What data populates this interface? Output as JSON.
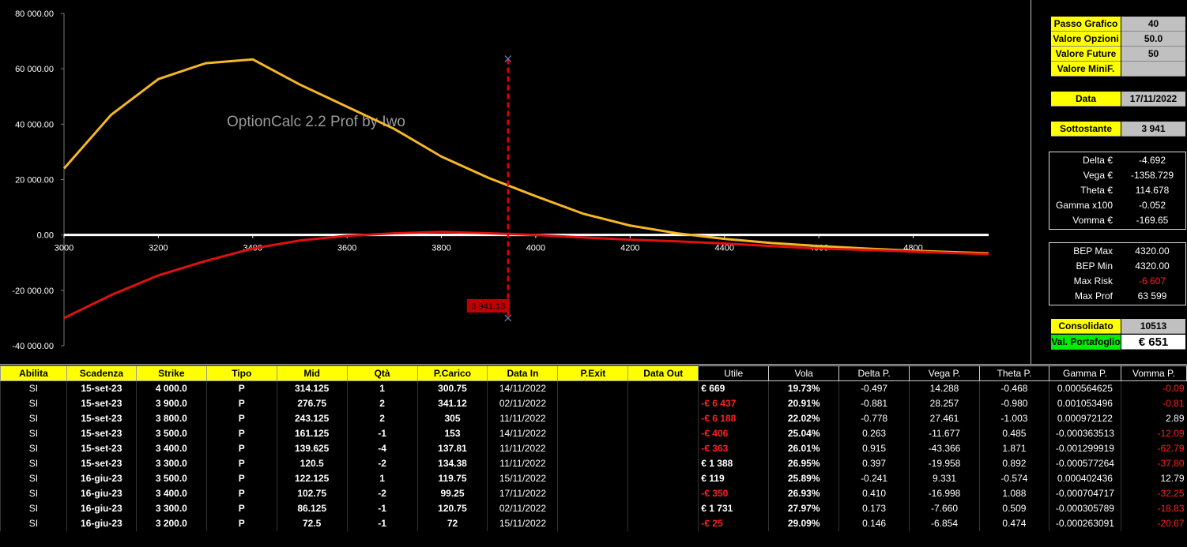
{
  "chart_data": {
    "type": "line",
    "annotation": "OptionCalc 2.2 Prof  by Iwo",
    "x": [
      3000,
      3100,
      3200,
      3300,
      3400,
      3500,
      3600,
      3700,
      3800,
      3900,
      4000,
      4100,
      4200,
      4300,
      4400,
      4500,
      4600,
      4700,
      4800,
      4900,
      4960
    ],
    "series": [
      {
        "color": "#f5b627",
        "values": [
          24000,
          43400,
          56300,
          62000,
          63400,
          54300,
          46300,
          38300,
          28300,
          20600,
          14000,
          7700,
          3400,
          600,
          -1400,
          -2900,
          -4000,
          -4900,
          -5700,
          -6300,
          -6600
        ]
      },
      {
        "color": "#e01010",
        "values": [
          -30000,
          -21700,
          -14600,
          -9400,
          -4900,
          -2000,
          -300,
          600,
          1100,
          600,
          0,
          -900,
          -1700,
          -2300,
          -3100,
          -4000,
          -4900,
          -5400,
          -6000,
          -6600,
          -6900
        ]
      }
    ],
    "xlim": [
      3000,
      4960
    ],
    "xticks": [
      3000,
      3200,
      3400,
      3600,
      3800,
      4000,
      4200,
      4400,
      4600,
      4800
    ],
    "ylim": [
      -40000,
      80000
    ],
    "yticks": [
      {
        "value": -40000,
        "label": "-40 000.00"
      },
      {
        "value": -20000,
        "label": "-20 000.00"
      },
      {
        "value": 0,
        "label": "0.00"
      },
      {
        "value": 20000,
        "label": "20 000.00"
      },
      {
        "value": 40000,
        "label": "40 000.00"
      },
      {
        "value": 60000,
        "label": "60 000.00"
      },
      {
        "value": 80000,
        "label": "80 000.00"
      }
    ],
    "marker": {
      "x": 3941.13,
      "label": "3 941.13",
      "y": [
        -30000,
        63599
      ],
      "color": "#e00000"
    }
  },
  "params": [
    {
      "label": "Passo Grafico",
      "value": "40"
    },
    {
      "label": "Valore Opzioni",
      "value": "50.0"
    },
    {
      "label": "Valore Future",
      "value": "50"
    },
    {
      "label": "Valore MiniF."
    }
  ],
  "date": {
    "label": "Data",
    "value": "17/11/2022"
  },
  "underlying": {
    "label": "Sottostante",
    "value": "3 941"
  },
  "greeks": [
    {
      "label": "Delta €",
      "value": "-4.692"
    },
    {
      "label": "Vega €",
      "value": "-1358.729"
    },
    {
      "label": "Theta €",
      "value": "114.678"
    },
    {
      "label": "Gamma x100",
      "value": "-0.052"
    },
    {
      "label": "Vomma €",
      "value": "-169.65"
    }
  ],
  "bep": [
    {
      "label": "BEP Max",
      "value": "4320.00"
    },
    {
      "label": "BEP Min",
      "value": "4320.00"
    },
    {
      "label": "Max Risk",
      "value": "-6 607"
    },
    {
      "label": "Max Prof",
      "value": "63 599"
    }
  ],
  "consolidated": {
    "label": "Consolidato",
    "value": "10513"
  },
  "portfolio": {
    "label": "Val. Portafoglio",
    "value": "€ 651"
  },
  "table": {
    "headers": [
      "Abilita",
      "Scadenza",
      "Strike",
      "Tipo",
      "Mid",
      "Qtà",
      "P.Carico",
      "Data In",
      "P.Exit",
      "Data Out",
      "Utile",
      "Vola",
      "Delta P.",
      "Vega P.",
      "Theta P.",
      "Gamma P.",
      "Vomma P."
    ],
    "rows": [
      [
        "SI",
        "15-set-23",
        "4 000.0",
        "P",
        "314.125",
        "1",
        "300.75",
        "14/11/2022",
        null,
        null,
        "€ 669",
        "19.73%",
        "-0.497",
        "14.288",
        "-0.468",
        "0.000564625",
        "-0.09"
      ],
      [
        "SI",
        "15-set-23",
        "3 900.0",
        "P",
        "276.75",
        "2",
        "341.12",
        "02/11/2022",
        null,
        null,
        "-€ 6 437",
        "20.91%",
        "-0.881",
        "28.257",
        "-0.980",
        "0.001053496",
        "-0.81"
      ],
      [
        "SI",
        "15-set-23",
        "3 800.0",
        "P",
        "243.125",
        "2",
        "305",
        "11/11/2022",
        null,
        null,
        "-€ 6 188",
        "22.02%",
        "-0.778",
        "27.461",
        "-1.003",
        "0.000972122",
        "2.89"
      ],
      [
        "SI",
        "15-set-23",
        "3 500.0",
        "P",
        "161.125",
        "-1",
        "153",
        "14/11/2022",
        null,
        null,
        "-€ 406",
        "25.04%",
        "0.263",
        "-11.677",
        "0.485",
        "-0.000363513",
        "-12.09"
      ],
      [
        "SI",
        "15-set-23",
        "3 400.0",
        "P",
        "139.625",
        "-4",
        "137.81",
        "11/11/2022",
        null,
        null,
        "-€ 363",
        "26.01%",
        "0.915",
        "-43.366",
        "1.871",
        "-0.001299919",
        "-62.79"
      ],
      [
        "SI",
        "15-set-23",
        "3 300.0",
        "P",
        "120.5",
        "-2",
        "134.38",
        "11/11/2022",
        null,
        null,
        "€ 1 388",
        "26.95%",
        "0.397",
        "-19.958",
        "0.892",
        "-0.000577264",
        "-37.80"
      ],
      [
        "SI",
        "16-giu-23",
        "3 500.0",
        "P",
        "122.125",
        "1",
        "119.75",
        "15/11/2022",
        null,
        null,
        "€ 119",
        "25.89%",
        "-0.241",
        "9.331",
        "-0.574",
        "0.000402436",
        "12.79"
      ],
      [
        "SI",
        "16-giu-23",
        "3 400.0",
        "P",
        "102.75",
        "-2",
        "99.25",
        "17/11/2022",
        null,
        null,
        "-€ 350",
        "26.93%",
        "0.410",
        "-16.998",
        "1.088",
        "-0.000704717",
        "-32.25"
      ],
      [
        "SI",
        "16-giu-23",
        "3 300.0",
        "P",
        "86.125",
        "-1",
        "120.75",
        "02/11/2022",
        null,
        null,
        "€ 1 731",
        "27.97%",
        "0.173",
        "-7.660",
        "0.509",
        "-0.000305789",
        "-18.83"
      ],
      [
        "SI",
        "16-giu-23",
        "3 200.0",
        "P",
        "72.5",
        "-1",
        "72",
        "15/11/2022",
        null,
        null,
        "-€ 25",
        "29.09%",
        "0.146",
        "-6.854",
        "0.474",
        "-0.000263091",
        "-20.67"
      ]
    ]
  }
}
